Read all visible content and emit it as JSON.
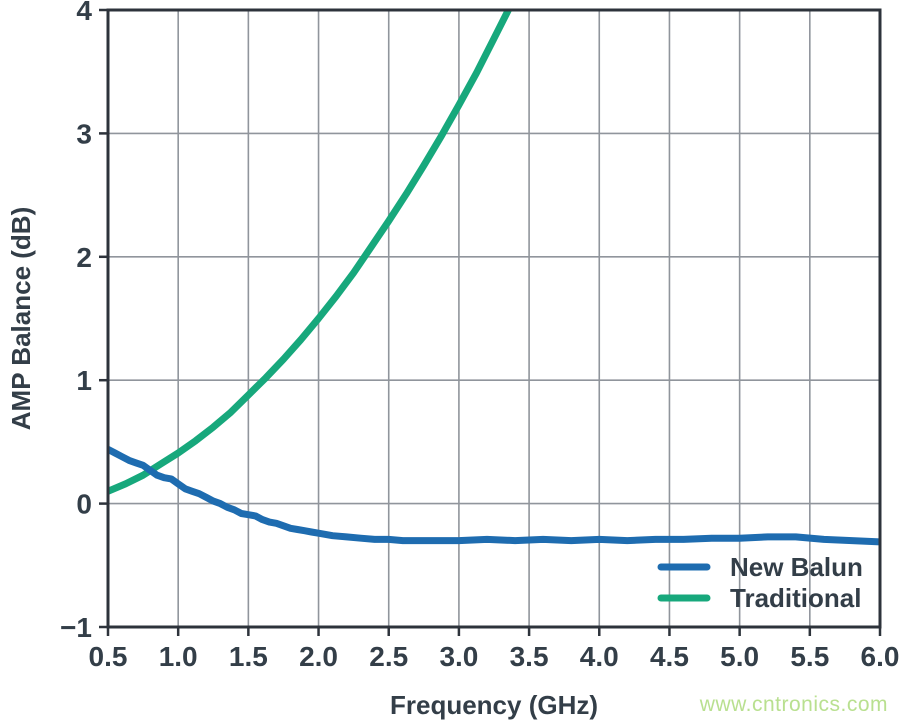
{
  "chart_data": {
    "type": "line",
    "title": "",
    "xlabel": "Frequency (GHz)",
    "ylabel": "AMP Balance (dB)",
    "xlim": [
      0.5,
      6.0
    ],
    "ylim": [
      -1,
      4
    ],
    "grid": true,
    "legend_position": "bottom-right",
    "x_ticks": {
      "values": [
        0.5,
        1.0,
        1.5,
        2.0,
        2.5,
        3.0,
        3.5,
        4.0,
        4.5,
        5.0,
        5.5,
        6.0
      ],
      "labels": [
        "0.5",
        "1.0",
        "1.5",
        "2.0",
        "2.5",
        "3.0",
        "3.5",
        "4.0",
        "4.5",
        "5.0",
        "5.5",
        "6.0"
      ]
    },
    "y_ticks": {
      "values": [
        -1,
        0,
        1,
        2,
        3,
        4
      ],
      "labels": [
        "−1",
        "0",
        "1",
        "2",
        "3",
        "4"
      ]
    },
    "series": [
      {
        "name": "New Balun",
        "color": "#1e6cb0",
        "points": [
          [
            0.5,
            0.44
          ],
          [
            0.55,
            0.41
          ],
          [
            0.6,
            0.38
          ],
          [
            0.65,
            0.35
          ],
          [
            0.7,
            0.33
          ],
          [
            0.75,
            0.31
          ],
          [
            0.8,
            0.27
          ],
          [
            0.85,
            0.23
          ],
          [
            0.9,
            0.21
          ],
          [
            0.95,
            0.2
          ],
          [
            1.0,
            0.16
          ],
          [
            1.05,
            0.12
          ],
          [
            1.1,
            0.1
          ],
          [
            1.15,
            0.08
          ],
          [
            1.2,
            0.05
          ],
          [
            1.25,
            0.02
          ],
          [
            1.3,
            0.0
          ],
          [
            1.35,
            -0.03
          ],
          [
            1.4,
            -0.05
          ],
          [
            1.45,
            -0.08
          ],
          [
            1.5,
            -0.09
          ],
          [
            1.55,
            -0.1
          ],
          [
            1.6,
            -0.13
          ],
          [
            1.65,
            -0.15
          ],
          [
            1.7,
            -0.16
          ],
          [
            1.75,
            -0.18
          ],
          [
            1.8,
            -0.2
          ],
          [
            1.85,
            -0.21
          ],
          [
            1.9,
            -0.22
          ],
          [
            1.95,
            -0.23
          ],
          [
            2.0,
            -0.24
          ],
          [
            2.1,
            -0.26
          ],
          [
            2.2,
            -0.27
          ],
          [
            2.3,
            -0.28
          ],
          [
            2.4,
            -0.29
          ],
          [
            2.5,
            -0.29
          ],
          [
            2.6,
            -0.3
          ],
          [
            2.8,
            -0.3
          ],
          [
            3.0,
            -0.3
          ],
          [
            3.2,
            -0.29
          ],
          [
            3.4,
            -0.3
          ],
          [
            3.6,
            -0.29
          ],
          [
            3.8,
            -0.3
          ],
          [
            4.0,
            -0.29
          ],
          [
            4.2,
            -0.3
          ],
          [
            4.4,
            -0.29
          ],
          [
            4.6,
            -0.29
          ],
          [
            4.8,
            -0.28
          ],
          [
            5.0,
            -0.28
          ],
          [
            5.2,
            -0.27
          ],
          [
            5.4,
            -0.27
          ],
          [
            5.6,
            -0.29
          ],
          [
            5.8,
            -0.3
          ],
          [
            6.0,
            -0.31
          ]
        ]
      },
      {
        "name": "Traditional",
        "color": "#17a87c",
        "points": [
          [
            0.5,
            0.1
          ],
          [
            0.625,
            0.16
          ],
          [
            0.75,
            0.23
          ],
          [
            0.875,
            0.32
          ],
          [
            1.0,
            0.41
          ],
          [
            1.125,
            0.51
          ],
          [
            1.25,
            0.62
          ],
          [
            1.375,
            0.74
          ],
          [
            1.5,
            0.88
          ],
          [
            1.625,
            1.02
          ],
          [
            1.75,
            1.17
          ],
          [
            1.875,
            1.33
          ],
          [
            2.0,
            1.5
          ],
          [
            2.125,
            1.68
          ],
          [
            2.25,
            1.87
          ],
          [
            2.375,
            2.08
          ],
          [
            2.5,
            2.29
          ],
          [
            2.625,
            2.51
          ],
          [
            2.75,
            2.74
          ],
          [
            2.875,
            2.98
          ],
          [
            3.0,
            3.23
          ],
          [
            3.125,
            3.49
          ],
          [
            3.25,
            3.77
          ],
          [
            3.375,
            4.05
          ],
          [
            3.5,
            4.34
          ]
        ]
      }
    ]
  },
  "watermark": {
    "text": "www.cntronics.com",
    "color": "#b9e090"
  },
  "styles": {
    "text_color": "#333e48",
    "axis_color": "#2d333b",
    "grid_color": "#90959c",
    "background": "#ffffff"
  }
}
